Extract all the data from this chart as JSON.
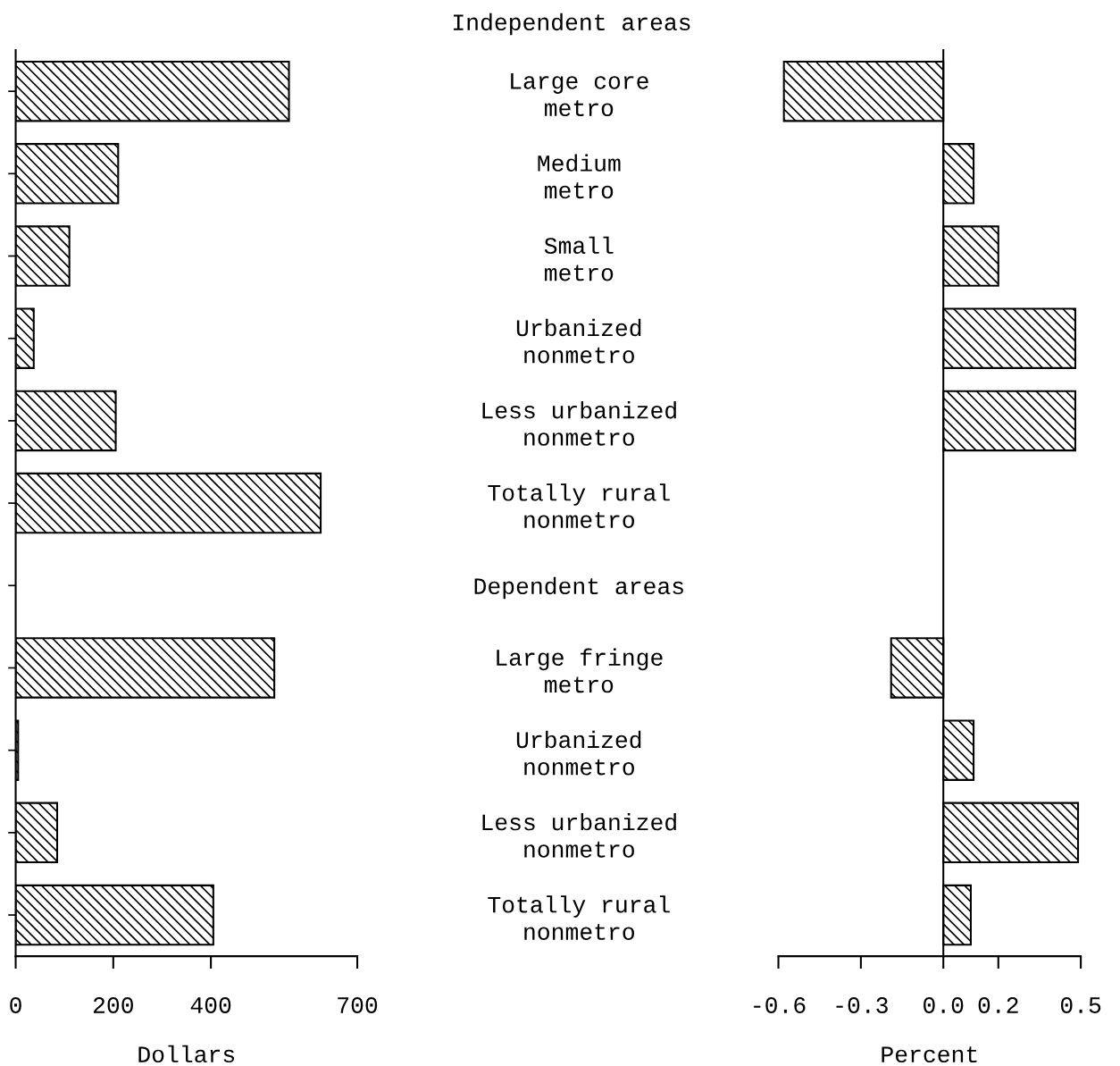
{
  "chart_data": [
    {
      "type": "bar",
      "orientation": "horizontal",
      "xlabel": "Dollars",
      "categories": [
        "Large core\nmetro",
        "Medium\nmetro",
        "Small\nmetro",
        "Urbanized\nnonmetro",
        "Less urbanized\nnonmetro",
        "Totally rural\nnonmetro",
        "Dependent areas",
        "Large fringe\nmetro",
        "Urbanized\nnonmetro",
        "Less urbanized\nnonmetro",
        "Totally rural\nnonmetro"
      ],
      "values": [
        560,
        210,
        110,
        37,
        205,
        625,
        null,
        530,
        5,
        85,
        405
      ],
      "color": "#000000",
      "xlim": [
        0,
        700
      ],
      "xticks": [
        0,
        200,
        400,
        700
      ]
    },
    {
      "type": "bar",
      "orientation": "horizontal",
      "title": "Independent areas",
      "xlabel": "Percent",
      "categories": [
        null,
        null,
        null,
        null,
        null,
        null,
        null,
        null,
        null,
        null,
        null
      ],
      "values": [
        -0.58,
        0.11,
        0.2,
        0.48,
        0.48,
        null,
        null,
        -0.19,
        0.11,
        0.49,
        0.1
      ],
      "color": "#000000",
      "xlim": [
        -0.6,
        0.5
      ],
      "xticks": [
        {
          "value": -0.6,
          "label": "-0.6"
        },
        {
          "value": -0.3,
          "label": "-0.3"
        },
        {
          "value": 0,
          "label": "0.0"
        },
        0.2,
        0.5
      ]
    }
  ]
}
